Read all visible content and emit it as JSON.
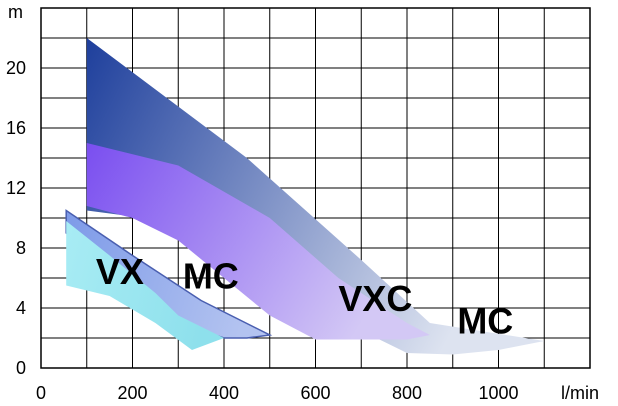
{
  "chart_data": {
    "type": "area",
    "title": "",
    "xlabel": "l/min",
    "ylabel": "m",
    "xlim": [
      0,
      1200
    ],
    "ylim": [
      0,
      24
    ],
    "x_ticks": [
      0,
      200,
      400,
      600,
      800,
      1000
    ],
    "y_ticks": [
      0,
      4,
      8,
      12,
      16,
      20
    ],
    "x_tick_labels": [
      "0",
      "200",
      "400",
      "600",
      "800",
      "1000"
    ],
    "y_tick_labels": [
      "0",
      "4",
      "8",
      "12",
      "16",
      "20"
    ],
    "grid": true,
    "series": [
      {
        "name": "MC",
        "label_at": [
          910,
          2.3
        ],
        "colors": [
          "#1e3f9c",
          "#dde3f0"
        ],
        "polygon": [
          [
            100,
            22
          ],
          [
            450,
            14
          ],
          [
            700,
            7.2
          ],
          [
            850,
            3.0
          ],
          [
            1100,
            1.8
          ],
          [
            1000,
            1.2
          ],
          [
            900,
            0.9
          ],
          [
            800,
            1.0
          ],
          [
            700,
            2.5
          ],
          [
            600,
            5.0
          ],
          [
            500,
            7.0
          ],
          [
            400,
            8.6
          ],
          [
            300,
            9.5
          ],
          [
            200,
            10.1
          ],
          [
            100,
            10.5
          ]
        ]
      },
      {
        "name": "VXC",
        "label_at": [
          650,
          3.8
        ],
        "colors": [
          "#7a4ef0",
          "#d3c8f5"
        ],
        "polygon": [
          [
            100,
            15
          ],
          [
            300,
            13.5
          ],
          [
            500,
            10
          ],
          [
            650,
            6.0
          ],
          [
            800,
            3.0
          ],
          [
            850,
            2.2
          ],
          [
            800,
            1.9
          ],
          [
            600,
            1.9
          ],
          [
            500,
            3.5
          ],
          [
            400,
            6.0
          ],
          [
            300,
            8.5
          ],
          [
            200,
            10.0
          ],
          [
            100,
            10.8
          ]
        ]
      },
      {
        "name": "MC",
        "label_at": [
          310,
          5.3
        ],
        "colors": [
          "#7d9ae8",
          "#b3c3f0"
        ],
        "polygon": [
          [
            55,
            10.5
          ],
          [
            200,
            7.5
          ],
          [
            350,
            4.5
          ],
          [
            500,
            2.2
          ],
          [
            450,
            2.0
          ],
          [
            400,
            2.0
          ],
          [
            300,
            3.0
          ],
          [
            200,
            5.5
          ],
          [
            100,
            8.0
          ],
          [
            55,
            9.0
          ]
        ]
      },
      {
        "name": "VX",
        "label_at": [
          120,
          5.6
        ],
        "colors": [
          "#a8ecf4",
          "#8ee0ec"
        ],
        "polygon": [
          [
            55,
            9.8
          ],
          [
            150,
            7.5
          ],
          [
            250,
            5.0
          ],
          [
            300,
            3.5
          ],
          [
            400,
            2.0
          ],
          [
            330,
            1.2
          ],
          [
            250,
            3.0
          ],
          [
            150,
            4.8
          ],
          [
            55,
            5.5
          ]
        ]
      }
    ]
  }
}
